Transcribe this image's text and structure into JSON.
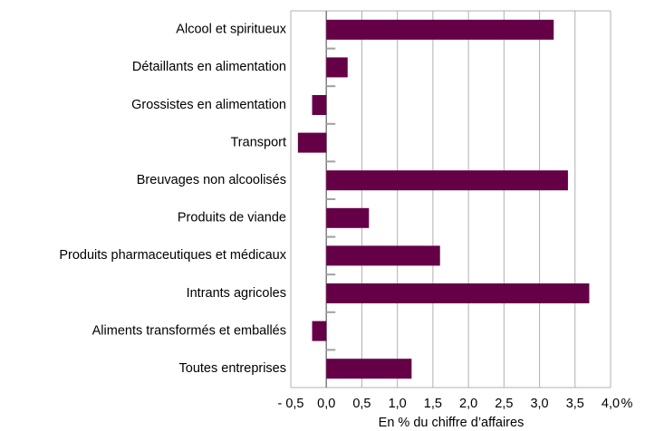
{
  "chart_data": {
    "type": "bar",
    "orientation": "horizontal",
    "categories": [
      "Alcool et spiritueux",
      "Détaillants en alimentation",
      "Grossistes en alimentation",
      "Transport",
      "Breuvages non alcoolisés",
      "Produits de viande",
      "Produits pharmaceutiques et médicaux",
      "Intrants agricoles",
      "Aliments transformés et emballés",
      "Toutes entreprises"
    ],
    "values": [
      3.2,
      0.3,
      -0.2,
      -0.4,
      3.4,
      0.6,
      1.6,
      3.7,
      -0.2,
      1.2
    ],
    "color": "#650047",
    "xlim": [
      -0.5,
      4.0
    ],
    "xticks": [
      {
        "value": -0.5,
        "label": "- 0,5"
      },
      {
        "value": 0,
        "label": "0,0"
      },
      {
        "value": 0.5,
        "label": "0,5"
      },
      {
        "value": 1,
        "label": "1,0"
      },
      {
        "value": 1.5,
        "label": "1,5"
      },
      {
        "value": 2,
        "label": "2,0"
      },
      {
        "value": 2.5,
        "label": "2,5"
      },
      {
        "value": 3,
        "label": "3,0"
      },
      {
        "value": 3.5,
        "label": "3,5"
      },
      {
        "value": 4,
        "label": "4,0"
      }
    ],
    "x_unit": "%",
    "xlabel": "En % du chiffre d’affaires",
    "grid": true
  }
}
